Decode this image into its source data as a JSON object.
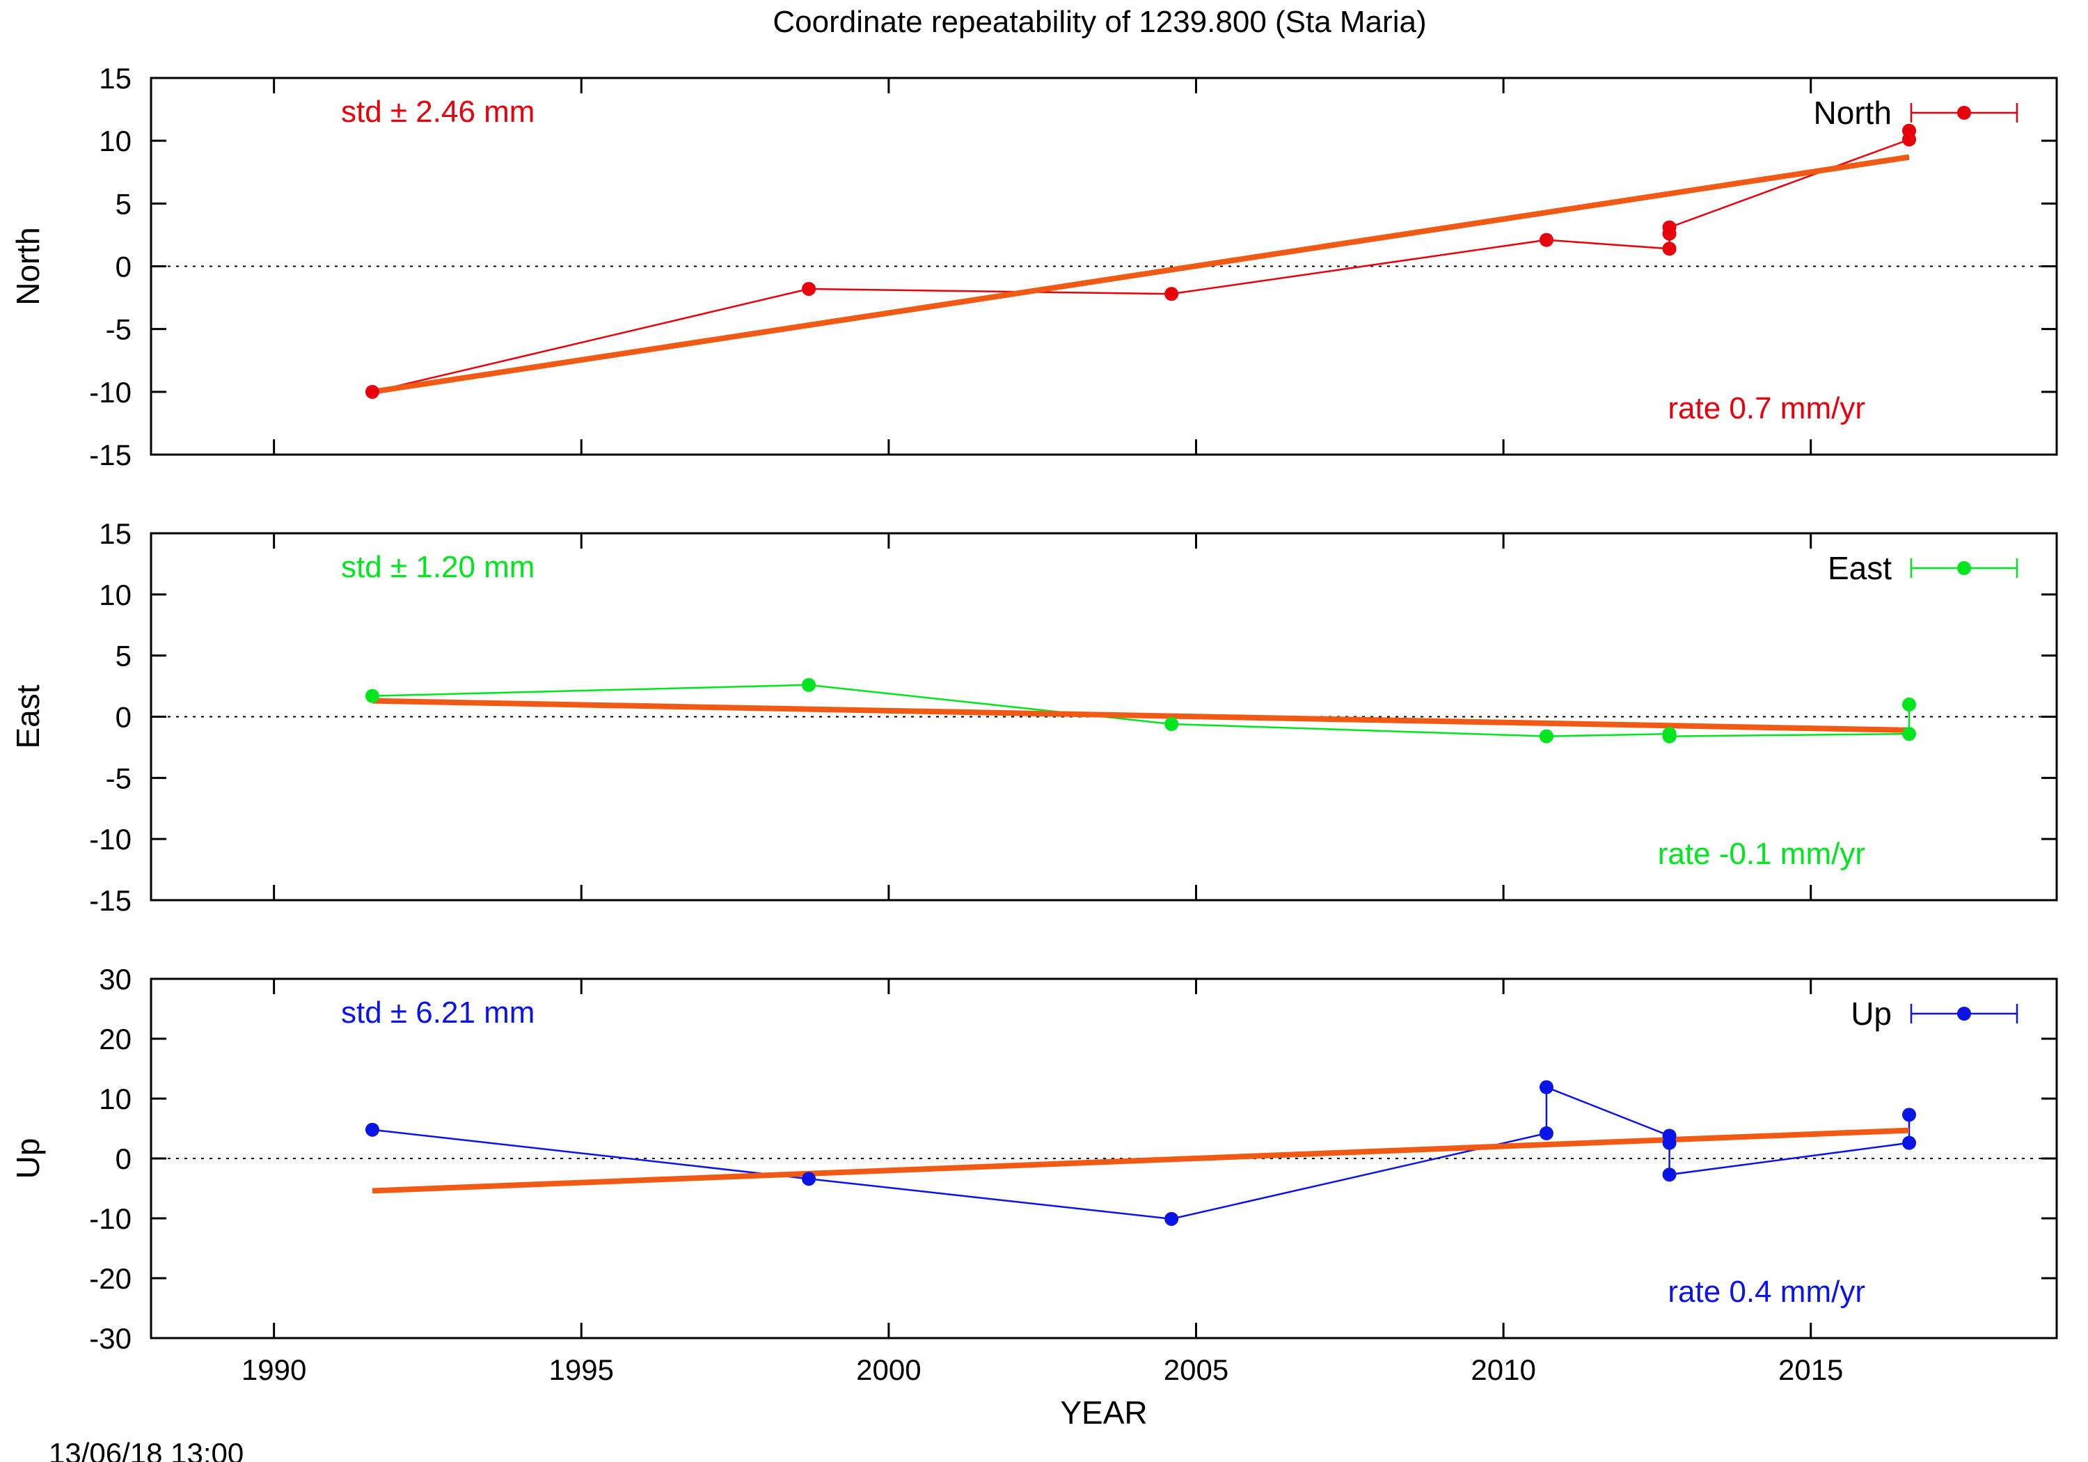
{
  "title": "Coordinate repeatability of 1239.800        (Sta Maria)",
  "timestamp": "13/06/18 13:00",
  "chart_data": [
    {
      "type": "line",
      "panel": "north",
      "ylabel": "North",
      "legend": "North",
      "color": "#e8000b",
      "fit_color": "#f05a14",
      "std_text": "std ± 2.46 mm",
      "rate_text": "rate  0.7 mm/yr",
      "xlim": [
        1988,
        2019
      ],
      "ylim": [
        -15,
        15
      ],
      "yticks": [
        -15,
        -10,
        -5,
        0,
        5,
        10,
        15
      ],
      "x": [
        1991.6,
        1998.7,
        2004.6,
        2010.7,
        2012.7,
        2012.7,
        2012.7,
        2016.6,
        2016.6
      ],
      "y": [
        -10.0,
        -1.8,
        -2.2,
        2.1,
        1.4,
        2.6,
        3.1,
        10.1,
        10.8
      ],
      "fit": {
        "x": [
          1991.6,
          2016.6
        ],
        "y": [
          -10.0,
          8.7
        ]
      }
    },
    {
      "type": "line",
      "panel": "east",
      "ylabel": "East",
      "legend": "East",
      "color": "#00e61e",
      "fit_color": "#f05a14",
      "std_text": "std ± 1.20 mm",
      "rate_text": "rate -0.1 mm/yr",
      "xlim": [
        1988,
        2019
      ],
      "ylim": [
        -15,
        15
      ],
      "yticks": [
        -15,
        -10,
        -5,
        0,
        5,
        10,
        15
      ],
      "x": [
        1991.6,
        1998.7,
        2004.6,
        2010.7,
        2012.7,
        2012.7,
        2016.6,
        2016.6
      ],
      "y": [
        1.7,
        2.6,
        -0.6,
        -1.6,
        -1.4,
        -1.6,
        -1.4,
        1.0
      ],
      "fit": {
        "x": [
          1991.6,
          2016.6
        ],
        "y": [
          1.3,
          -1.1
        ]
      }
    },
    {
      "type": "line",
      "panel": "up",
      "ylabel": "Up",
      "legend": "Up",
      "xlabel": "YEAR",
      "color": "#0a14e6",
      "fit_color": "#f05a14",
      "std_text": "std ± 6.21 mm",
      "rate_text": "rate  0.4 mm/yr",
      "xlim": [
        1988,
        2019
      ],
      "ylim": [
        -30,
        30
      ],
      "yticks": [
        -30,
        -20,
        -10,
        0,
        10,
        20,
        30
      ],
      "xticks": [
        1990,
        1995,
        2000,
        2005,
        2010,
        2015
      ],
      "x": [
        1991.6,
        1998.7,
        2004.6,
        2010.7,
        2010.7,
        2012.7,
        2012.7,
        2012.7,
        2016.6,
        2016.6
      ],
      "y": [
        4.8,
        -3.4,
        -10.1,
        4.2,
        11.9,
        3.8,
        2.6,
        -2.7,
        2.6,
        7.3
      ],
      "fit": {
        "x": [
          1991.6,
          2016.6
        ],
        "y": [
          -5.4,
          4.7
        ]
      }
    }
  ]
}
